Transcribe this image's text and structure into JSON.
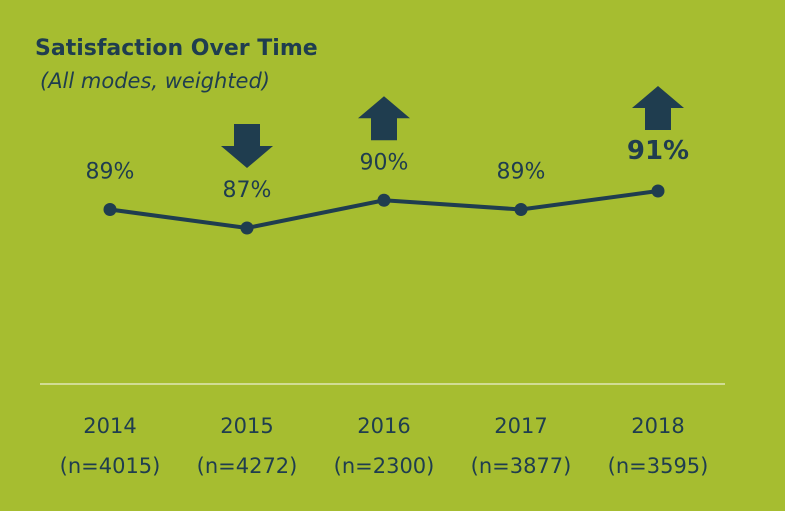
{
  "chart_data": {
    "type": "line",
    "title": "Satisfaction Over Time",
    "subtitle": "(All modes, weighted)",
    "categories": [
      "2014",
      "2015",
      "2016",
      "2017",
      "2018"
    ],
    "sample_sizes": [
      "(n=4015)",
      "(n=4272)",
      "(n=2300)",
      "(n=3877)",
      "(n=3595)"
    ],
    "values": [
      89,
      87,
      90,
      89,
      91
    ],
    "value_labels": [
      "89%",
      "87%",
      "90%",
      "89%",
      "91%"
    ],
    "emphasis": [
      false,
      false,
      false,
      false,
      true
    ],
    "change_arrows": [
      null,
      "down",
      "up",
      null,
      "up"
    ],
    "color": "#1f3d4f",
    "background": "#a6bd30"
  }
}
